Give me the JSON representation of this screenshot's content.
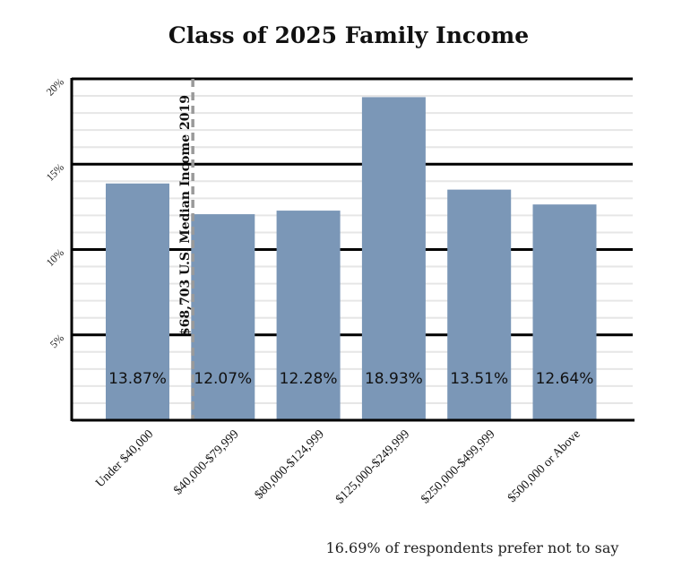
{
  "chart_data": {
    "type": "bar",
    "title": "Class of 2025 Family Income",
    "categories": [
      "Under $40,000",
      "$40,000-$79,999",
      "$80,000-$124,999",
      "$125,000-$249,999",
      "$250,000-$499,999",
      "$500,000 or Above"
    ],
    "values": [
      13.87,
      12.07,
      12.28,
      18.93,
      13.51,
      12.64
    ],
    "value_labels": [
      "13.87%",
      "12.07%",
      "12.28%",
      "18.93%",
      "13.51%",
      "12.64%"
    ],
    "ylim": [
      0,
      20
    ],
    "yticks": [
      5,
      10,
      15,
      20
    ],
    "ytick_labels": [
      "5%",
      "10%",
      "15%",
      "20%"
    ],
    "bar_color": "#7b97b7",
    "grid": true,
    "reference_line": {
      "label": "$68,703 U.S. Median Income 2019",
      "position": "between first and second categories"
    },
    "footnote": "16.69% of respondents prefer not to say"
  }
}
